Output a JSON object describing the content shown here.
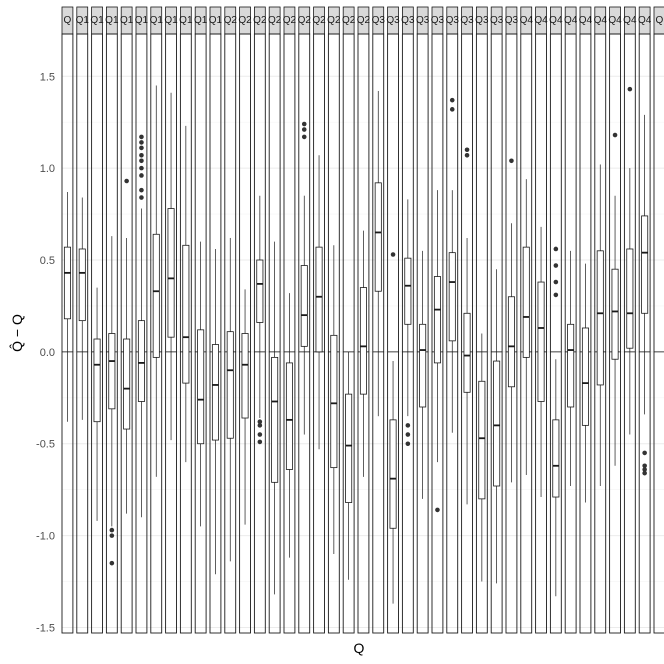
{
  "chart_data": {
    "type": "boxplot",
    "facet_labels": [
      "Q",
      "Q1",
      "Q1",
      "Q1",
      "Q1",
      "Q1",
      "Q1",
      "Q1",
      "Q1",
      "Q1",
      "Q1",
      "Q2",
      "Q2",
      "Q2",
      "Q2",
      "Q2",
      "Q2",
      "Q2",
      "Q2",
      "Q2",
      "Q2",
      "Q3",
      "Q3",
      "Q3",
      "Q3",
      "Q3",
      "Q3",
      "Q3",
      "Q3",
      "Q3",
      "Q3",
      "Q4",
      "Q4",
      "Q4",
      "Q4",
      "Q4",
      "Q4",
      "Q4",
      "Q4",
      "Q4",
      "Q"
    ],
    "xlabel": "Q",
    "ylabel": "Q̂ − Q",
    "ylim": [
      -1.53,
      1.73
    ],
    "yticks": [
      -1.5,
      -1.0,
      -0.5,
      0.0,
      0.5,
      1.0,
      1.5
    ],
    "ytick_labels": [
      "-1.5",
      "-1.0",
      "-0.5",
      "0.0",
      "0.5",
      "1.0",
      "1.5"
    ],
    "reference_line": 0,
    "grid": true,
    "boxes": [
      {
        "q1": 0.18,
        "median": 0.43,
        "q3": 0.57,
        "whisker_low": -0.38,
        "whisker_high": 0.87,
        "outliers": []
      },
      {
        "q1": 0.17,
        "median": 0.43,
        "q3": 0.56,
        "whisker_low": -0.37,
        "whisker_high": 0.84,
        "outliers": []
      },
      {
        "q1": -0.38,
        "median": -0.07,
        "q3": 0.07,
        "whisker_low": -0.92,
        "whisker_high": 0.35,
        "outliers": []
      },
      {
        "q1": -0.31,
        "median": -0.05,
        "q3": 0.1,
        "whisker_low": -0.95,
        "whisker_high": 0.63,
        "outliers": [
          -0.97,
          -1.0,
          -1.15
        ]
      },
      {
        "q1": -0.42,
        "median": -0.2,
        "q3": 0.07,
        "whisker_low": -0.88,
        "whisker_high": 0.62,
        "outliers": [
          0.93
        ]
      },
      {
        "q1": -0.27,
        "median": -0.06,
        "q3": 0.17,
        "whisker_low": -0.9,
        "whisker_high": 0.78,
        "outliers": [
          0.84,
          0.88,
          0.96,
          1.0,
          1.04,
          1.07,
          1.11,
          1.14,
          1.17
        ]
      },
      {
        "q1": -0.03,
        "median": 0.33,
        "q3": 0.64,
        "whisker_low": -0.68,
        "whisker_high": 1.45,
        "outliers": []
      },
      {
        "q1": 0.08,
        "median": 0.4,
        "q3": 0.78,
        "whisker_low": -0.48,
        "whisker_high": 1.41,
        "outliers": []
      },
      {
        "q1": -0.17,
        "median": 0.08,
        "q3": 0.58,
        "whisker_low": -0.6,
        "whisker_high": 1.23,
        "outliers": []
      },
      {
        "q1": -0.5,
        "median": -0.26,
        "q3": 0.12,
        "whisker_low": -0.95,
        "whisker_high": 0.6,
        "outliers": []
      },
      {
        "q1": -0.48,
        "median": -0.18,
        "q3": 0.04,
        "whisker_low": -1.21,
        "whisker_high": 0.56,
        "outliers": []
      },
      {
        "q1": -0.47,
        "median": -0.1,
        "q3": 0.11,
        "whisker_low": -1.14,
        "whisker_high": 0.62,
        "outliers": []
      },
      {
        "q1": -0.36,
        "median": -0.07,
        "q3": 0.1,
        "whisker_low": -0.94,
        "whisker_high": 0.34,
        "outliers": []
      },
      {
        "q1": 0.16,
        "median": 0.37,
        "q3": 0.5,
        "whisker_low": -0.36,
        "whisker_high": 0.85,
        "outliers": [
          -0.38,
          -0.4,
          -0.45,
          -0.49
        ]
      },
      {
        "q1": -0.71,
        "median": -0.27,
        "q3": -0.03,
        "whisker_low": -1.32,
        "whisker_high": 0.6,
        "outliers": []
      },
      {
        "q1": -0.64,
        "median": -0.37,
        "q3": -0.06,
        "whisker_low": -1.12,
        "whisker_high": 0.32,
        "outliers": []
      },
      {
        "q1": 0.03,
        "median": 0.2,
        "q3": 0.47,
        "whisker_low": -0.45,
        "whisker_high": 0.85,
        "outliers": [
          1.17,
          1.21,
          1.24
        ]
      },
      {
        "q1": 0.0,
        "median": 0.3,
        "q3": 0.57,
        "whisker_low": -0.53,
        "whisker_high": 1.07,
        "outliers": []
      },
      {
        "q1": -0.63,
        "median": -0.28,
        "q3": 0.09,
        "whisker_low": -1.1,
        "whisker_high": 0.58,
        "outliers": []
      },
      {
        "q1": -0.82,
        "median": -0.51,
        "q3": -0.23,
        "whisker_low": -1.24,
        "whisker_high": 0.0,
        "outliers": []
      },
      {
        "q1": -0.23,
        "median": 0.03,
        "q3": 0.35,
        "whisker_low": -0.68,
        "whisker_high": 0.66,
        "outliers": []
      },
      {
        "q1": 0.33,
        "median": 0.65,
        "q3": 0.92,
        "whisker_low": -0.35,
        "whisker_high": 1.42,
        "outliers": []
      },
      {
        "q1": -0.96,
        "median": -0.69,
        "q3": -0.37,
        "whisker_low": -1.37,
        "whisker_high": -0.05,
        "outliers": [
          0.53
        ]
      },
      {
        "q1": 0.15,
        "median": 0.36,
        "q3": 0.51,
        "whisker_low": -0.35,
        "whisker_high": 0.83,
        "outliers": [
          -0.4,
          -0.45,
          -0.5
        ]
      },
      {
        "q1": -0.3,
        "median": 0.01,
        "q3": 0.15,
        "whisker_low": -0.8,
        "whisker_high": 0.55,
        "outliers": []
      },
      {
        "q1": -0.06,
        "median": 0.23,
        "q3": 0.41,
        "whisker_low": -0.6,
        "whisker_high": 0.88,
        "outliers": [
          -0.86
        ]
      },
      {
        "q1": 0.06,
        "median": 0.38,
        "q3": 0.54,
        "whisker_low": -0.44,
        "whisker_high": 0.88,
        "outliers": [
          1.32,
          1.37
        ]
      },
      {
        "q1": -0.22,
        "median": -0.02,
        "q3": 0.21,
        "whisker_low": -0.83,
        "whisker_high": 0.62,
        "outliers": [
          1.07,
          1.1
        ]
      },
      {
        "q1": -0.8,
        "median": -0.47,
        "q3": -0.16,
        "whisker_low": -1.25,
        "whisker_high": 0.1,
        "outliers": []
      },
      {
        "q1": -0.73,
        "median": -0.4,
        "q3": -0.05,
        "whisker_low": -1.26,
        "whisker_high": 0.45,
        "outliers": []
      },
      {
        "q1": -0.19,
        "median": 0.03,
        "q3": 0.3,
        "whisker_low": -0.71,
        "whisker_high": 0.7,
        "outliers": [
          1.04
        ]
      },
      {
        "q1": -0.03,
        "median": 0.19,
        "q3": 0.57,
        "whisker_low": -0.67,
        "whisker_high": 0.94,
        "outliers": []
      },
      {
        "q1": -0.27,
        "median": 0.13,
        "q3": 0.38,
        "whisker_low": -0.79,
        "whisker_high": 0.68,
        "outliers": []
      },
      {
        "q1": -0.79,
        "median": -0.62,
        "q3": -0.37,
        "whisker_low": -1.33,
        "whisker_high": -0.04,
        "outliers": [
          0.31,
          0.38,
          0.47,
          0.56
        ]
      },
      {
        "q1": -0.3,
        "median": 0.01,
        "q3": 0.15,
        "whisker_low": -0.73,
        "whisker_high": 0.55,
        "outliers": []
      },
      {
        "q1": -0.4,
        "median": -0.17,
        "q3": 0.13,
        "whisker_low": -0.82,
        "whisker_high": 0.48,
        "outliers": []
      },
      {
        "q1": -0.18,
        "median": 0.21,
        "q3": 0.55,
        "whisker_low": -0.73,
        "whisker_high": 1.02,
        "outliers": []
      },
      {
        "q1": -0.04,
        "median": 0.22,
        "q3": 0.45,
        "whisker_low": -0.62,
        "whisker_high": 0.85,
        "outliers": [
          1.18
        ]
      },
      {
        "q1": 0.02,
        "median": 0.21,
        "q3": 0.56,
        "whisker_low": -0.45,
        "whisker_high": 1.0,
        "outliers": [
          1.43
        ]
      },
      {
        "q1": 0.21,
        "median": 0.54,
        "q3": 0.74,
        "whisker_low": -0.34,
        "whisker_high": 1.29,
        "outliers": [
          -0.55,
          -0.62,
          -0.64,
          -0.66
        ]
      }
    ]
  },
  "colors": {
    "strip_fill": "#d9d9d9",
    "panel_border": "#1a1a1a",
    "grid": "#ebebeb",
    "box_line": "#1a1a1a",
    "outlier": "#333333",
    "tick_text": "#4d4d4d"
  }
}
